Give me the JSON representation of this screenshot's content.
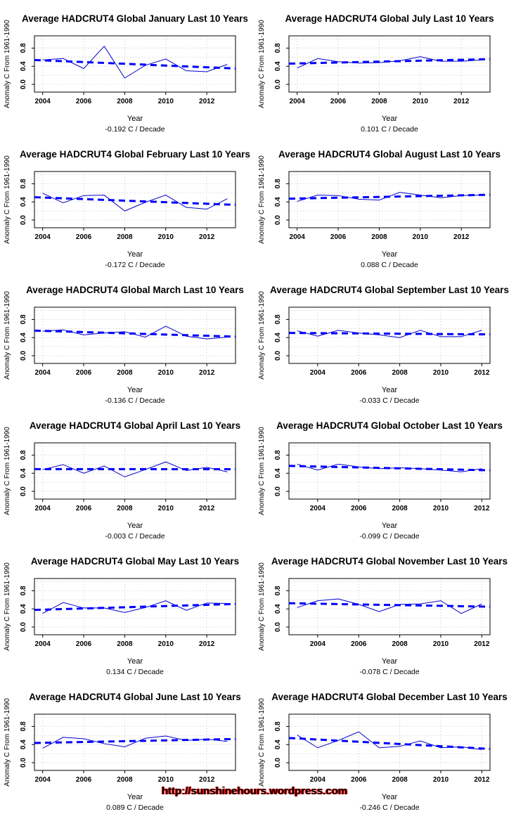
{
  "footer": {
    "url": "http://sunshinehours.wordpress.com"
  },
  "colors": {
    "data_line": "#0000cc",
    "trend_line": "#0000ff",
    "grid": "#c8c8c8",
    "axis": "#000000",
    "text": "#000000",
    "footer_text": "#000000",
    "footer_fringe": "#ee0000"
  },
  "chart_layout": {
    "grid": "dotted",
    "legend_position": "none",
    "ylim": [
      -0.17,
      1.07
    ],
    "ytick_values": [
      0.0,
      0.4,
      0.8
    ],
    "ytick_labels": [
      "0.0",
      "0.4",
      "0.8"
    ],
    "ygrid": [
      0.0,
      0.2,
      0.4,
      0.6,
      0.8,
      1.0
    ]
  },
  "chart_data": [
    {
      "type": "line",
      "title": "Average HADCRUT4 Global January Last 10 Years",
      "xlabel": "Year",
      "ylabel": "Anomaly C From 1961-1990",
      "trend_label": "-0.192 C / Decade",
      "trend_c_per_decade": -0.192,
      "x": [
        2004,
        2005,
        2006,
        2007,
        2008,
        2009,
        2010,
        2011,
        2012,
        2013
      ],
      "values": [
        0.54,
        0.57,
        0.35,
        0.84,
        0.14,
        0.42,
        0.56,
        0.3,
        0.28,
        0.44
      ],
      "xlim": [
        2003.6,
        2013.4
      ],
      "xticks": [
        2004,
        2006,
        2008,
        2010,
        2012
      ]
    },
    {
      "type": "line",
      "title": "Average HADCRUT4 Global July Last 10 Years",
      "xlabel": "Year",
      "ylabel": "Anomaly C From 1961-1990",
      "trend_label": "0.101 C / Decade",
      "trend_c_per_decade": 0.101,
      "x": [
        2004,
        2005,
        2006,
        2007,
        2008,
        2009,
        2010,
        2011,
        2012,
        2013
      ],
      "values": [
        0.36,
        0.57,
        0.5,
        0.47,
        0.48,
        0.52,
        0.61,
        0.51,
        0.51,
        0.54
      ],
      "xlim": [
        2003.6,
        2013.4
      ],
      "xticks": [
        2004,
        2006,
        2008,
        2010,
        2012
      ]
    },
    {
      "type": "line",
      "title": "Average HADCRUT4 Global February Last 10 Years",
      "xlabel": "Year",
      "ylabel": "Anomaly C From 1961-1990",
      "trend_label": "-0.172 C / Decade",
      "trend_c_per_decade": -0.172,
      "x": [
        2004,
        2005,
        2006,
        2007,
        2008,
        2009,
        2010,
        2011,
        2012,
        2013
      ],
      "values": [
        0.59,
        0.38,
        0.54,
        0.55,
        0.2,
        0.39,
        0.55,
        0.28,
        0.24,
        0.47
      ],
      "xlim": [
        2003.6,
        2013.4
      ],
      "xticks": [
        2004,
        2006,
        2008,
        2010,
        2012
      ]
    },
    {
      "type": "line",
      "title": "Average HADCRUT4 Global August Last 10 Years",
      "xlabel": "Year",
      "ylabel": "Anomaly C From 1961-1990",
      "trend_label": "0.088 C / Decade",
      "trend_c_per_decade": 0.088,
      "x": [
        2004,
        2005,
        2006,
        2007,
        2008,
        2009,
        2010,
        2011,
        2012,
        2013
      ],
      "values": [
        0.41,
        0.55,
        0.54,
        0.46,
        0.44,
        0.61,
        0.55,
        0.49,
        0.54,
        0.55
      ],
      "xlim": [
        2003.6,
        2013.4
      ],
      "xticks": [
        2004,
        2006,
        2008,
        2010,
        2012
      ]
    },
    {
      "type": "line",
      "title": "Average HADCRUT4 Global March Last 10 Years",
      "xlabel": "Year",
      "ylabel": "Anomaly C From 1961-1990",
      "trend_label": "-0.136 C / Decade",
      "trend_c_per_decade": -0.136,
      "x": [
        2004,
        2005,
        2006,
        2007,
        2008,
        2009,
        2010,
        2011,
        2012,
        2013
      ],
      "values": [
        0.54,
        0.57,
        0.46,
        0.5,
        0.53,
        0.41,
        0.65,
        0.43,
        0.37,
        0.41
      ],
      "xlim": [
        2003.6,
        2013.4
      ],
      "xticks": [
        2004,
        2006,
        2008,
        2010,
        2012
      ]
    },
    {
      "type": "line",
      "title": "Average HADCRUT4 Global September Last 10 Years",
      "xlabel": "Year",
      "ylabel": "Anomaly C From 1961-1990",
      "trend_label": "-0.033 C / Decade",
      "trend_c_per_decade": -0.033,
      "x": [
        2003,
        2004,
        2005,
        2006,
        2007,
        2008,
        2009,
        2010,
        2011,
        2012
      ],
      "values": [
        0.55,
        0.43,
        0.56,
        0.5,
        0.46,
        0.4,
        0.56,
        0.42,
        0.42,
        0.56
      ],
      "xlim": [
        2002.6,
        2012.4
      ],
      "xticks": [
        2004,
        2006,
        2008,
        2010,
        2012
      ]
    },
    {
      "type": "line",
      "title": "Average HADCRUT4 Global April Last 10 Years",
      "xlabel": "Year",
      "ylabel": "Anomaly C From 1961-1990",
      "trend_label": "-0.003 C / Decade",
      "trend_c_per_decade": -0.003,
      "x": [
        2004,
        2005,
        2006,
        2007,
        2008,
        2009,
        2010,
        2011,
        2012,
        2013
      ],
      "values": [
        0.48,
        0.59,
        0.4,
        0.56,
        0.32,
        0.48,
        0.65,
        0.46,
        0.53,
        0.43
      ],
      "xlim": [
        2003.6,
        2013.4
      ],
      "xticks": [
        2004,
        2006,
        2008,
        2010,
        2012
      ]
    },
    {
      "type": "line",
      "title": "Average HADCRUT4 Global October Last 10 Years",
      "xlabel": "Year",
      "ylabel": "Anomaly C From 1961-1990",
      "trend_label": "-0.099 C / Decade",
      "trend_c_per_decade": -0.099,
      "x": [
        2003,
        2004,
        2005,
        2006,
        2007,
        2008,
        2009,
        2010,
        2011,
        2012
      ],
      "values": [
        0.6,
        0.47,
        0.6,
        0.54,
        0.5,
        0.52,
        0.5,
        0.47,
        0.43,
        0.5
      ],
      "xlim": [
        2002.6,
        2012.4
      ],
      "xticks": [
        2004,
        2006,
        2008,
        2010,
        2012
      ]
    },
    {
      "type": "line",
      "title": "Average HADCRUT4 Global May Last 10 Years",
      "xlabel": "Year",
      "ylabel": "Anomaly C From 1961-1990",
      "trend_label": "0.134 C / Decade",
      "trend_c_per_decade": 0.134,
      "x": [
        2004,
        2005,
        2006,
        2007,
        2008,
        2009,
        2010,
        2011,
        2012,
        2013
      ],
      "values": [
        0.3,
        0.54,
        0.42,
        0.42,
        0.32,
        0.43,
        0.58,
        0.37,
        0.53,
        0.52
      ],
      "xlim": [
        2003.6,
        2013.4
      ],
      "xticks": [
        2004,
        2006,
        2008,
        2010,
        2012
      ]
    },
    {
      "type": "line",
      "title": "Average HADCRUT4 Global November Last 10 Years",
      "xlabel": "Year",
      "ylabel": "Anomaly C From 1961-1990",
      "trend_label": "-0.078 C / Decade",
      "trend_c_per_decade": -0.078,
      "x": [
        2003,
        2004,
        2005,
        2006,
        2007,
        2008,
        2009,
        2010,
        2011,
        2012
      ],
      "values": [
        0.43,
        0.58,
        0.62,
        0.5,
        0.34,
        0.5,
        0.51,
        0.58,
        0.3,
        0.51
      ],
      "xlim": [
        2002.6,
        2012.4
      ],
      "xticks": [
        2004,
        2006,
        2008,
        2010,
        2012
      ]
    },
    {
      "type": "line",
      "title": "Average HADCRUT4 Global June Last 10 Years",
      "xlabel": "Year",
      "ylabel": "Anomaly C From 1961-1990",
      "trend_label": "0.089 C / Decade",
      "trend_c_per_decade": 0.089,
      "x": [
        2004,
        2005,
        2006,
        2007,
        2008,
        2009,
        2010,
        2011,
        2012,
        2013
      ],
      "values": [
        0.32,
        0.56,
        0.53,
        0.42,
        0.35,
        0.54,
        0.59,
        0.49,
        0.52,
        0.47
      ],
      "xlim": [
        2003.6,
        2013.4
      ],
      "xticks": [
        2004,
        2006,
        2008,
        2010,
        2012
      ]
    },
    {
      "type": "line",
      "title": "Average HADCRUT4 Global December Last 10 Years",
      "xlabel": "Year",
      "ylabel": "Anomaly C From 1961-1990",
      "trend_label": "-0.246 C / Decade",
      "trend_c_per_decade": -0.246,
      "x": [
        2003,
        2004,
        2005,
        2006,
        2007,
        2008,
        2009,
        2010,
        2011,
        2012
      ],
      "values": [
        0.61,
        0.33,
        0.49,
        0.68,
        0.33,
        0.36,
        0.48,
        0.33,
        0.35,
        0.29
      ],
      "xlim": [
        2002.6,
        2012.4
      ],
      "xticks": [
        2004,
        2006,
        2008,
        2010,
        2012
      ]
    }
  ]
}
